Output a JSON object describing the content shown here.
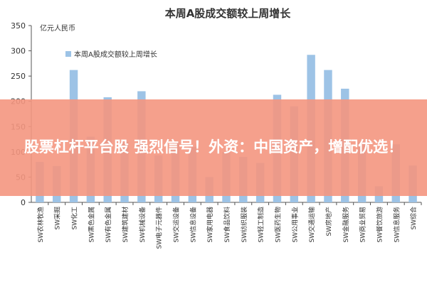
{
  "chart_data": {
    "type": "bar",
    "title": "本周A股成交额较上周增长",
    "ylabel": "亿元人民币",
    "ylim": [
      0,
      350
    ],
    "yticks": [
      0,
      50,
      100,
      150,
      200,
      250,
      300,
      350
    ],
    "legend": {
      "position": "top-left",
      "label": "本周A股成交额较上周增长"
    },
    "colors": {
      "bar": "#9dc3e6",
      "axis": "#555555"
    },
    "categories": [
      "SW农林牧渔",
      "SW采掘",
      "SW化工",
      "SW黑色金属",
      "SW有色金属",
      "SW建筑建材",
      "SW机械设备",
      "SW电子元器件",
      "SW交运设备",
      "SW信息设备",
      "SW家用电器",
      "SW食品饮料",
      "SW纺织服装",
      "SW轻工制造",
      "SW医药生物",
      "SW公用事业",
      "SW交通运输",
      "SW房地产",
      "SW金融服务",
      "SW商业贸易",
      "SW餐饮旅游",
      "SW信息服务",
      "SW综合"
    ],
    "values": [
      80,
      72,
      262,
      130,
      208,
      120,
      220,
      93,
      120,
      110,
      50,
      100,
      90,
      78,
      213,
      190,
      292,
      262,
      225,
      120,
      32,
      115,
      73
    ]
  },
  "banner": {
    "text": "股票杠杆平台股 强烈信号！外资：中国资产，增配优选！"
  }
}
